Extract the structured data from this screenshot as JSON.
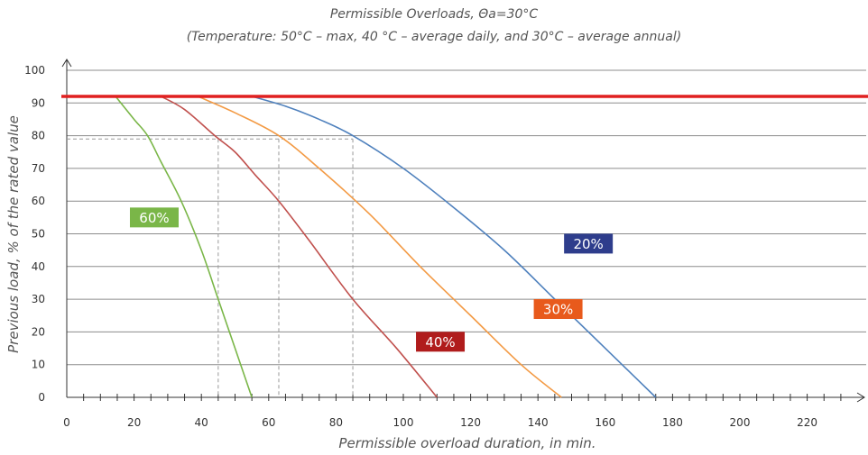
{
  "chart_data": {
    "type": "line",
    "title": "Permissible Overloads, Θa=30°C",
    "subtitle": "(Temperature: 50°C – max, 40 °C – average daily, and 30°C – average annual)",
    "xlabel": "Permissible overload duration, in min.",
    "ylabel": "Previous load, % of the rated value",
    "xlim": [
      0,
      240
    ],
    "ylim": [
      0,
      100
    ],
    "x_ticks": [
      0,
      20,
      40,
      60,
      80,
      100,
      120,
      140,
      160,
      180,
      200,
      220
    ],
    "y_ticks": [
      0,
      10,
      20,
      30,
      40,
      50,
      60,
      70,
      80,
      90,
      100
    ],
    "x_minor_step": 5,
    "grid": "horizontal",
    "limit_line": {
      "y": 92,
      "color": "#e02020"
    },
    "reference": {
      "y": 79,
      "x_values": [
        45,
        63,
        85
      ]
    },
    "series": [
      {
        "name": "60%",
        "color": "#7ab648",
        "label_bg": "#7ab648",
        "label_at": [
          26,
          55
        ],
        "x": [
          14.5,
          20,
          24,
          28,
          34,
          40,
          45,
          50,
          55
        ],
        "y": [
          92,
          85,
          80,
          72,
          60,
          45,
          30,
          15,
          0
        ]
      },
      {
        "name": "40%",
        "color": "#c0504d",
        "label_bg": "#b01c1c",
        "label_at": [
          111,
          17
        ],
        "x": [
          28,
          35,
          44,
          50,
          56,
          63,
          72,
          85,
          98,
          110
        ],
        "y": [
          92,
          88,
          80,
          75,
          68,
          60,
          48,
          30,
          15,
          0
        ]
      },
      {
        "name": "30%",
        "color": "#f39a44",
        "label_bg": "#e85a1c",
        "label_at": [
          146,
          27
        ],
        "x": [
          39,
          50,
          63,
          75,
          90,
          105,
          120,
          135,
          147
        ],
        "y": [
          92,
          87,
          80,
          70,
          56,
          40,
          25,
          10,
          0
        ]
      },
      {
        "name": "20%",
        "color": "#4f81bd",
        "label_bg": "#2e3d8c",
        "label_at": [
          155,
          47
        ],
        "x": [
          55,
          65,
          75,
          85,
          100,
          115,
          130,
          145,
          160,
          167,
          175
        ],
        "y": [
          92,
          89,
          85,
          80,
          70,
          58,
          45,
          30,
          15,
          8,
          0
        ]
      }
    ]
  }
}
